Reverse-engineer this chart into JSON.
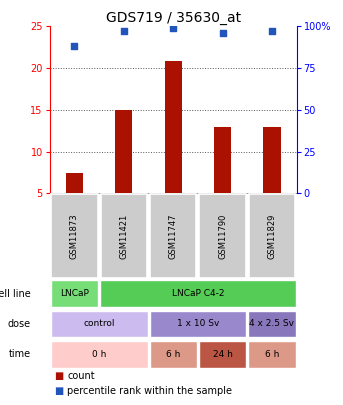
{
  "title": "GDS719 / 35630_at",
  "samples": [
    "GSM11873",
    "GSM11421",
    "GSM11747",
    "GSM11790",
    "GSM11829"
  ],
  "counts": [
    7.5,
    15.0,
    20.8,
    13.0,
    13.0
  ],
  "percentile_ranks": [
    88,
    97,
    99,
    96,
    97
  ],
  "ylim_left": [
    5,
    25
  ],
  "ylim_right": [
    0,
    100
  ],
  "yticks_left": [
    5,
    10,
    15,
    20,
    25
  ],
  "yticks_right": [
    0,
    25,
    50,
    75,
    100
  ],
  "bar_color": "#aa1100",
  "scatter_color": "#2255bb",
  "bar_bottom": 5,
  "cell_items": [
    [
      "LNCaP",
      0,
      1,
      "#77dd77"
    ],
    [
      "LNCaP C4-2",
      1,
      5,
      "#55cc55"
    ]
  ],
  "dose_items": [
    [
      "control",
      0,
      2,
      "#ccbbee"
    ],
    [
      "1 x 10 Sv",
      2,
      4,
      "#9988cc"
    ],
    [
      "4 x 2.5 Sv",
      4,
      5,
      "#8877bb"
    ]
  ],
  "time_items": [
    [
      "0 h",
      0,
      2,
      "#ffcccc"
    ],
    [
      "6 h",
      2,
      3,
      "#dd9988"
    ],
    [
      "24 h",
      3,
      4,
      "#bb5544"
    ],
    [
      "6 h",
      4,
      5,
      "#dd9988"
    ]
  ],
  "row_labels": [
    "cell line",
    "dose",
    "time"
  ],
  "legend_count": "count",
  "legend_pct": "percentile rank within the sample",
  "sample_bg": "#cccccc",
  "title_fontsize": 10,
  "tick_fontsize": 7,
  "row_label_fontsize": 7,
  "gsm_fontsize": 6,
  "annotation_fontsize": 6.5,
  "legend_fontsize": 7
}
